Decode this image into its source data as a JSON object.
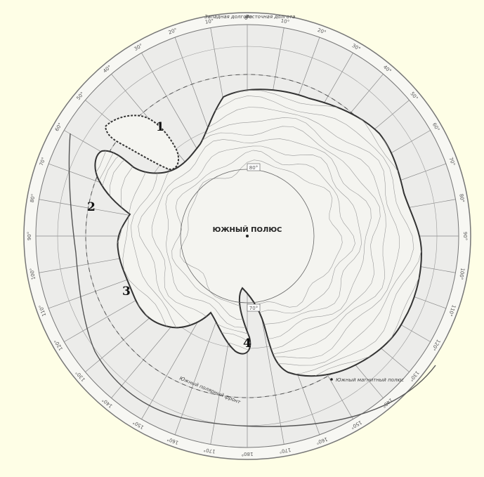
{
  "map": {
    "pole_label": "ЮЖНЫЙ ПОЛЮС",
    "top_meridian_labels": [
      "Западная долгота",
      "Восточная долгота"
    ],
    "region_numbers": [
      "1",
      "2",
      "3",
      "4"
    ],
    "degree_labels": [
      "0°",
      "10°",
      "20°",
      "30°",
      "40°",
      "50°",
      "60°",
      "70°",
      "80°",
      "90°",
      "100°",
      "110°",
      "120°",
      "130°",
      "140°",
      "150°",
      "160°",
      "170°",
      "180°",
      "170°",
      "160°",
      "150°",
      "140°",
      "130°",
      "120°",
      "110°",
      "100°",
      "90°",
      "80°",
      "70°",
      "60°",
      "50°",
      "40°",
      "30°",
      "20°",
      "10°"
    ],
    "latitude_labels": [
      "80°",
      "70°"
    ],
    "front_label": "Южный полярный фронт",
    "magnetic_pole_label": "Южный магнитный полюс",
    "colors": {
      "background": "#fefee6",
      "map_fill": "#ececea",
      "ink": "#333333"
    }
  }
}
